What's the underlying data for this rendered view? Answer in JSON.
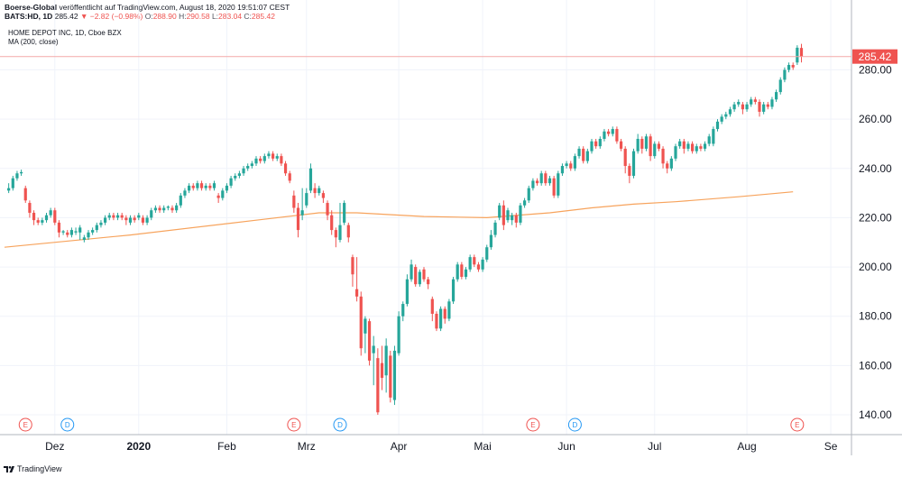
{
  "header": {
    "publisher": "Boerse-Global",
    "published_text": " veröffentlicht auf TradingView.com, August 18, 2020 19:51:07 CEST",
    "symbol_text": "BATS:HD, 1D",
    "last": "285.42",
    "change": "▼ −2.82 (−0.98%)",
    "open_label": "O:",
    "open_value": "288.90",
    "high_label": "H:",
    "high_value": "290.58",
    "low_label": "L:",
    "low_value": "283.04",
    "close_label": "C:",
    "close_value": "285.42"
  },
  "chart_title": "HOME DEPOT INC, 1D, Cboe BZX",
  "ma_title": "MA (200, close)",
  "footer": {
    "brand": "TradingView"
  },
  "colors": {
    "up": "#26a69a",
    "down": "#ef5350",
    "ma": "#f7a35c",
    "grid": "#f0f3fa",
    "axis_line": "#b2b5be",
    "price_line": "#f4a9a8",
    "earnings_marker": "#ef5350",
    "dividend_marker": "#2196f3"
  },
  "chart_data": {
    "type": "candlestick",
    "title": "HOME DEPOT INC, 1D, Cboe BZX",
    "ylim": [
      132,
      294
    ],
    "y_ticks": [
      "280.00",
      "260.00",
      "240.00",
      "220.00",
      "200.00",
      "180.00",
      "160.00",
      "140.00"
    ],
    "y_tick_values": [
      280,
      260,
      240,
      220,
      200,
      180,
      160,
      140
    ],
    "x_labels": [
      {
        "label": "Dez",
        "index": 12
      },
      {
        "label": "2020",
        "index": 32
      },
      {
        "label": "Feb",
        "index": 53
      },
      {
        "label": "Mrz",
        "index": 72
      },
      {
        "label": "Apr",
        "index": 94
      },
      {
        "label": "Mai",
        "index": 114
      },
      {
        "label": "Jun",
        "index": 134
      },
      {
        "label": "Jul",
        "index": 155
      },
      {
        "label": "Aug",
        "index": 177
      },
      {
        "label": "Se",
        "index": 197
      }
    ],
    "last_price_label": "285.42",
    "last_price": 285.42,
    "markers": [
      {
        "type": "E",
        "index": 5
      },
      {
        "type": "D",
        "index": 15
      },
      {
        "type": "E",
        "index": 69
      },
      {
        "type": "D",
        "index": 80
      },
      {
        "type": "E",
        "index": 126
      },
      {
        "type": "D",
        "index": 136
      },
      {
        "type": "E",
        "index": 189
      }
    ],
    "ma_points": [
      [
        0,
        208
      ],
      [
        30,
        213
      ],
      [
        60,
        219
      ],
      [
        75,
        222
      ],
      [
        84,
        222
      ],
      [
        100,
        220.5
      ],
      [
        115,
        220
      ],
      [
        130,
        222
      ],
      [
        140,
        224
      ],
      [
        150,
        225.5
      ],
      [
        160,
        226.5
      ],
      [
        175,
        228.5
      ],
      [
        188,
        230.5
      ]
    ],
    "candles": [
      [
        1,
        231,
        232,
        230,
        234
      ],
      [
        2,
        232,
        236,
        231,
        237
      ],
      [
        3,
        236,
        238,
        235,
        239
      ],
      [
        4,
        238,
        238.5,
        237,
        239.5
      ],
      [
        5,
        232,
        227,
        226,
        233
      ],
      [
        6,
        226,
        222,
        220,
        227
      ],
      [
        7,
        222,
        219,
        217,
        223
      ],
      [
        8,
        219,
        218,
        217,
        220
      ],
      [
        9,
        218,
        219,
        217,
        220
      ],
      [
        10,
        219,
        221,
        218,
        222
      ],
      [
        11,
        221,
        223,
        220,
        224
      ],
      [
        12,
        223,
        218,
        217,
        224
      ],
      [
        13,
        218,
        214,
        212,
        219
      ],
      [
        14,
        214,
        214.5,
        213,
        215
      ],
      [
        15,
        214,
        213,
        212,
        215
      ],
      [
        16,
        213,
        215,
        212,
        216
      ],
      [
        17,
        214,
        214.5,
        213,
        216
      ],
      [
        18,
        214,
        216,
        211,
        217
      ],
      [
        19,
        211,
        212,
        210,
        213
      ],
      [
        20,
        212,
        214,
        211,
        215
      ],
      [
        21,
        214,
        215,
        213,
        216
      ],
      [
        22,
        215,
        217,
        214,
        218
      ],
      [
        23,
        217,
        218,
        216,
        219
      ],
      [
        24,
        218,
        220,
        217,
        221
      ],
      [
        25,
        220,
        221,
        219,
        222
      ],
      [
        26,
        221,
        220,
        219,
        222
      ],
      [
        27,
        220,
        221,
        219,
        222
      ],
      [
        28,
        221,
        220,
        219,
        222
      ],
      [
        29,
        220,
        219,
        217,
        221
      ],
      [
        30,
        218,
        220,
        217,
        221
      ],
      [
        31,
        220,
        219,
        218,
        221
      ],
      [
        32,
        220,
        221,
        219,
        222
      ],
      [
        33,
        220,
        218,
        217,
        221
      ],
      [
        34,
        218,
        220,
        217,
        221
      ],
      [
        35,
        220,
        223,
        219,
        224
      ],
      [
        36,
        223,
        224,
        222,
        225
      ],
      [
        37,
        224,
        223,
        222,
        225
      ],
      [
        38,
        223,
        224,
        222,
        225
      ],
      [
        39,
        224,
        224.5,
        223,
        225
      ],
      [
        40,
        224,
        223,
        222,
        225
      ],
      [
        41,
        223,
        225,
        222,
        226
      ],
      [
        42,
        225,
        229,
        224,
        230
      ],
      [
        43,
        229,
        231,
        228,
        232
      ],
      [
        44,
        231,
        233,
        230,
        234
      ],
      [
        45,
        233,
        232,
        231,
        234
      ],
      [
        46,
        232,
        234,
        231,
        235
      ],
      [
        47,
        234,
        232,
        231,
        235
      ],
      [
        48,
        232,
        233,
        231,
        234
      ],
      [
        49,
        233,
        232,
        231,
        234
      ],
      [
        50,
        232,
        234,
        231,
        235
      ],
      [
        51,
        229,
        228,
        226,
        230
      ],
      [
        52,
        228,
        231,
        227,
        232
      ],
      [
        53,
        231,
        233,
        230,
        234
      ],
      [
        54,
        233,
        236,
        232,
        237
      ],
      [
        55,
        236,
        237,
        235,
        238
      ],
      [
        56,
        237,
        238,
        236,
        239
      ],
      [
        57,
        238,
        240,
        237,
        241
      ],
      [
        58,
        240,
        241,
        239,
        242
      ],
      [
        59,
        241,
        242,
        240,
        243
      ],
      [
        60,
        242,
        244,
        241,
        245
      ],
      [
        61,
        244,
        243,
        242,
        245
      ],
      [
        62,
        243,
        245,
        242,
        246
      ],
      [
        63,
        245,
        246,
        244,
        247
      ],
      [
        64,
        246,
        244,
        243,
        247
      ],
      [
        65,
        244,
        245,
        243,
        246
      ],
      [
        66,
        245,
        242,
        241,
        246
      ],
      [
        67,
        242,
        238,
        237,
        243
      ],
      [
        68,
        238,
        235,
        234,
        239
      ],
      [
        69,
        229,
        224,
        222,
        231
      ],
      [
        70,
        224,
        215,
        212,
        226
      ],
      [
        71,
        221,
        223,
        219,
        232
      ],
      [
        72,
        225,
        230,
        224,
        232
      ],
      [
        73,
        231,
        240,
        230,
        242
      ],
      [
        74,
        232,
        230,
        228,
        234
      ],
      [
        75,
        230,
        232,
        229,
        233
      ],
      [
        76,
        230,
        228,
        226,
        231
      ],
      [
        77,
        226,
        221,
        219,
        227
      ],
      [
        78,
        221,
        215,
        213,
        223
      ],
      [
        79,
        215,
        212,
        208,
        216
      ],
      [
        80,
        211,
        217,
        210,
        226
      ],
      [
        81,
        218,
        226,
        217,
        227
      ],
      [
        82,
        217,
        212,
        210,
        218
      ],
      [
        83,
        204,
        197,
        192,
        205
      ],
      [
        84,
        191,
        188,
        186,
        204
      ],
      [
        85,
        188,
        167,
        164,
        190
      ],
      [
        86,
        173,
        179,
        165,
        180
      ],
      [
        87,
        178,
        162,
        160,
        179
      ],
      [
        88,
        165,
        168,
        152,
        172
      ],
      [
        89,
        163,
        141,
        140,
        167
      ],
      [
        90,
        161,
        155,
        150,
        168
      ],
      [
        91,
        156,
        168,
        149,
        171
      ],
      [
        92,
        164,
        147,
        145,
        166
      ],
      [
        93,
        146,
        166,
        144,
        168
      ],
      [
        94,
        165,
        180,
        164,
        182
      ],
      [
        95,
        180,
        185,
        178,
        186
      ],
      [
        96,
        185,
        195,
        184,
        197
      ],
      [
        97,
        195,
        201,
        194,
        203
      ],
      [
        98,
        200,
        193,
        192,
        201
      ],
      [
        99,
        193,
        198,
        192,
        199
      ],
      [
        100,
        199,
        195,
        194,
        200
      ],
      [
        101,
        195,
        193,
        191,
        196
      ],
      [
        102,
        187,
        181,
        178,
        188
      ],
      [
        103,
        181,
        175,
        174,
        182
      ],
      [
        104,
        175,
        183,
        174,
        184
      ],
      [
        105,
        183,
        179,
        177,
        184
      ],
      [
        106,
        179,
        186,
        178,
        187
      ],
      [
        107,
        186,
        195,
        185,
        196
      ],
      [
        108,
        195,
        201,
        194,
        202
      ],
      [
        109,
        201,
        196,
        195,
        202
      ],
      [
        110,
        196,
        199,
        195,
        200
      ],
      [
        111,
        199,
        204,
        198,
        205
      ],
      [
        112,
        204,
        201,
        200,
        205
      ],
      [
        113,
        201,
        199,
        198,
        202
      ],
      [
        114,
        199,
        203,
        198,
        204
      ],
      [
        115,
        203,
        208,
        202,
        209
      ],
      [
        116,
        208,
        213,
        207,
        215
      ],
      [
        117,
        213,
        218,
        212,
        219
      ],
      [
        118,
        220,
        225,
        219,
        226
      ],
      [
        119,
        225,
        217,
        215,
        227
      ],
      [
        120,
        219,
        223,
        218,
        224
      ],
      [
        121,
        219,
        221,
        217,
        222
      ],
      [
        122,
        221,
        218,
        216,
        222
      ],
      [
        123,
        218,
        225,
        217,
        226
      ],
      [
        124,
        225,
        227,
        224,
        228
      ],
      [
        125,
        227,
        232,
        226,
        233
      ],
      [
        126,
        232,
        235,
        231,
        236
      ],
      [
        127,
        235,
        234,
        233,
        236
      ],
      [
        128,
        234,
        238,
        233,
        239
      ],
      [
        129,
        238,
        234,
        233,
        239
      ],
      [
        130,
        234,
        236,
        233,
        237
      ],
      [
        131,
        236,
        229,
        228,
        237
      ],
      [
        132,
        229,
        238,
        228,
        239
      ],
      [
        133,
        238,
        241,
        237,
        242
      ],
      [
        134,
        241,
        242,
        240,
        243
      ],
      [
        135,
        242,
        240,
        239,
        243
      ],
      [
        136,
        240,
        245,
        239,
        246
      ],
      [
        137,
        245,
        248,
        244,
        249
      ],
      [
        138,
        248,
        243,
        242,
        249
      ],
      [
        139,
        243,
        247,
        242,
        248
      ],
      [
        140,
        247,
        251,
        246,
        252
      ],
      [
        141,
        251,
        249,
        248,
        252
      ],
      [
        142,
        249,
        252,
        248,
        253
      ],
      [
        143,
        252,
        255,
        251,
        256
      ],
      [
        144,
        255,
        254,
        253,
        256
      ],
      [
        145,
        254,
        256,
        253,
        257
      ],
      [
        146,
        256,
        251,
        250,
        257
      ],
      [
        147,
        251,
        248,
        247,
        252
      ],
      [
        148,
        248,
        241,
        238,
        249
      ],
      [
        149,
        241,
        237,
        234,
        242
      ],
      [
        150,
        237,
        247,
        236,
        248
      ],
      [
        151,
        247,
        252,
        246,
        254
      ],
      [
        152,
        252,
        248,
        246,
        253
      ],
      [
        153,
        248,
        253,
        247,
        254
      ],
      [
        154,
        253,
        245,
        243,
        254
      ],
      [
        155,
        245,
        250,
        244,
        251
      ],
      [
        156,
        250,
        248,
        247,
        251
      ],
      [
        157,
        248,
        242,
        240,
        249
      ],
      [
        158,
        242,
        240,
        238,
        243
      ],
      [
        159,
        240,
        244,
        239,
        245
      ],
      [
        160,
        244,
        249,
        243,
        250
      ],
      [
        161,
        249,
        251,
        248,
        252
      ],
      [
        162,
        251,
        248,
        246,
        252
      ],
      [
        163,
        248,
        250,
        247,
        251
      ],
      [
        164,
        250,
        247,
        246,
        251
      ],
      [
        165,
        247,
        249,
        246,
        250
      ],
      [
        166,
        249,
        248,
        247,
        250
      ],
      [
        167,
        248,
        250,
        247,
        251
      ],
      [
        168,
        250,
        253,
        249,
        254
      ],
      [
        169,
        250,
        256,
        249,
        257
      ],
      [
        170,
        256,
        259,
        255,
        260
      ],
      [
        171,
        259,
        261,
        258,
        262
      ],
      [
        172,
        261,
        262,
        260,
        263
      ],
      [
        173,
        262,
        264,
        261,
        265
      ],
      [
        174,
        264,
        266,
        263,
        267
      ],
      [
        175,
        266,
        267,
        265,
        268
      ],
      [
        176,
        266,
        264,
        262,
        267
      ],
      [
        177,
        264,
        266,
        263,
        267
      ],
      [
        178,
        266,
        268,
        265,
        269
      ],
      [
        179,
        268,
        267,
        266,
        269
      ],
      [
        180,
        267,
        263,
        261,
        268
      ],
      [
        181,
        263,
        266,
        262,
        267
      ],
      [
        182,
        266,
        265,
        264,
        267
      ],
      [
        183,
        265,
        268,
        264,
        269
      ],
      [
        184,
        268,
        271,
        267,
        272
      ],
      [
        185,
        271,
        276,
        270,
        277
      ],
      [
        186,
        276,
        280,
        275,
        281
      ],
      [
        187,
        280,
        282,
        279,
        283
      ],
      [
        188,
        282,
        281,
        280,
        283
      ],
      [
        189,
        283,
        289,
        282,
        290
      ],
      [
        190,
        288.9,
        285.42,
        283.04,
        290.58
      ]
    ]
  }
}
